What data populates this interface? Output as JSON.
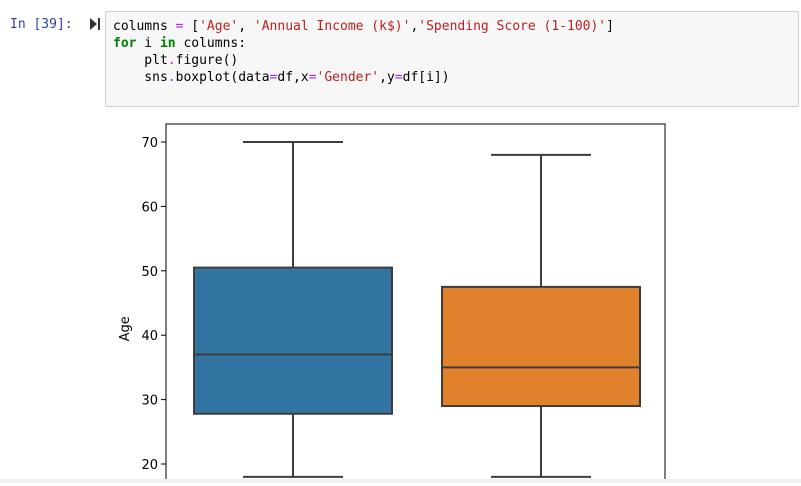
{
  "cell": {
    "prompt": "In [39]:",
    "code_lines": [
      [
        {
          "t": "columns ",
          "c": ""
        },
        {
          "t": "=",
          "c": "op"
        },
        {
          "t": " [",
          "c": ""
        },
        {
          "t": "'Age'",
          "c": "str"
        },
        {
          "t": ", ",
          "c": ""
        },
        {
          "t": "'Annual Income (k$)'",
          "c": "str"
        },
        {
          "t": ",",
          "c": ""
        },
        {
          "t": "'Spending Score (1-100)'",
          "c": "str"
        },
        {
          "t": "]",
          "c": ""
        }
      ],
      [
        {
          "t": "for",
          "c": "kw"
        },
        {
          "t": " i ",
          "c": ""
        },
        {
          "t": "in",
          "c": "kw"
        },
        {
          "t": " columns:",
          "c": ""
        }
      ],
      [
        {
          "t": "    plt",
          "c": ""
        },
        {
          "t": ".",
          "c": "op"
        },
        {
          "t": "figure()",
          "c": ""
        }
      ],
      [
        {
          "t": "    sns",
          "c": ""
        },
        {
          "t": ".",
          "c": "op"
        },
        {
          "t": "boxplot(data",
          "c": ""
        },
        {
          "t": "=",
          "c": "op"
        },
        {
          "t": "df,x",
          "c": ""
        },
        {
          "t": "=",
          "c": "op"
        },
        {
          "t": "'Gender'",
          "c": "str"
        },
        {
          "t": ",y",
          "c": ""
        },
        {
          "t": "=",
          "c": "op"
        },
        {
          "t": "df[i])",
          "c": ""
        }
      ]
    ]
  },
  "chart_data": {
    "type": "box",
    "ylabel": "Age",
    "yticks": [
      20,
      30,
      40,
      50,
      60,
      70
    ],
    "ylim": [
      18,
      72.6
    ],
    "boxes": [
      {
        "whisker_low": 18,
        "q1": 27.8,
        "median": 37,
        "q3": 50.5,
        "whisker_high": 70,
        "color": "#3274a1"
      },
      {
        "whisker_low": 18,
        "q1": 29,
        "median": 35,
        "q3": 47.5,
        "whisker_high": 68,
        "color": "#e1812c"
      }
    ]
  }
}
